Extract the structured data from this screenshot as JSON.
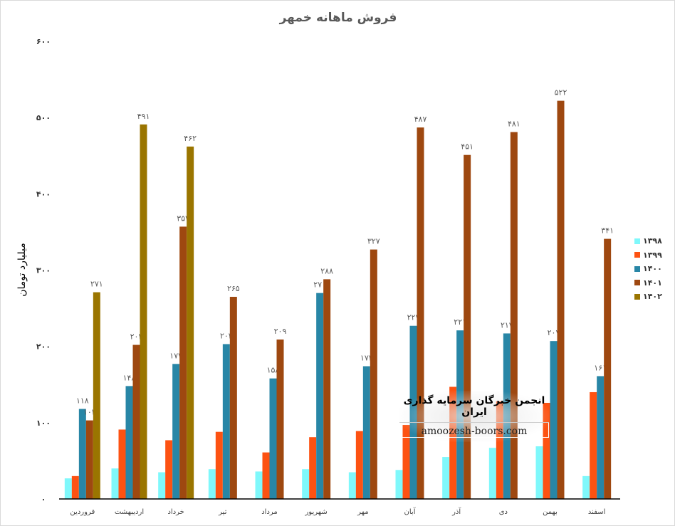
{
  "chart_data": {
    "type": "bar",
    "title": "فروش ماهانه خمهر",
    "ylabel": "میلیارد تومان",
    "xlabel": "",
    "ylim": [
      0,
      600
    ],
    "yticks": [
      0,
      100,
      200,
      300,
      400,
      500,
      600
    ],
    "legend_position": "right",
    "categories": [
      "فروردین",
      "اردیبهشت",
      "خرداد",
      "تیر",
      "مرداد",
      "شهریور",
      "مهر",
      "آبان",
      "آذر",
      "دی",
      "بهمن",
      "اسفند"
    ],
    "series": [
      {
        "name": "۱۳۹۸",
        "color": "#7ff8fb",
        "show_labels": false,
        "values": [
          27,
          40,
          35,
          39,
          36,
          39,
          35,
          38,
          55,
          67,
          69,
          30
        ]
      },
      {
        "name": "۱۳۹۹",
        "color": "#fd5212",
        "show_labels": false,
        "values": [
          30,
          91,
          77,
          88,
          61,
          81,
          89,
          97,
          147,
          128,
          126,
          140
        ]
      },
      {
        "name": "۱۴۰۰",
        "color": "#2886a6",
        "show_labels": true,
        "values": [
          118,
          148,
          177,
          203,
          158,
          270,
          174,
          227,
          221,
          217,
          207,
          161
        ]
      },
      {
        "name": "۱۴۰۱",
        "color": "#9e4810",
        "show_labels": true,
        "values": [
          103,
          202,
          357,
          265,
          209,
          288,
          327,
          487,
          451,
          481,
          522,
          341
        ]
      },
      {
        "name": "۱۴۰۲",
        "color": "#9a7500",
        "show_labels": true,
        "values": [
          271,
          491,
          462,
          null,
          null,
          null,
          null,
          null,
          null,
          null,
          null,
          null
        ]
      }
    ]
  },
  "watermark": {
    "title": "انجمن خبرگان سرمایه گذاری ایران",
    "url": "amoozesh-boors.com"
  }
}
